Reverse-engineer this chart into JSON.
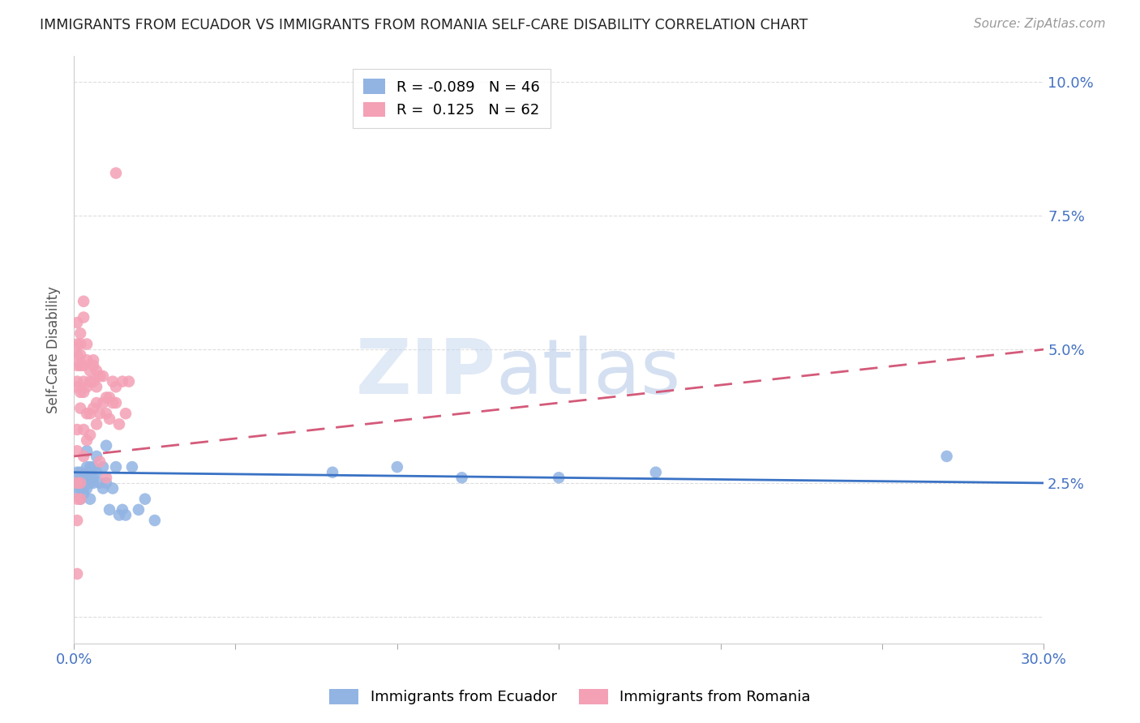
{
  "title": "IMMIGRANTS FROM ECUADOR VS IMMIGRANTS FROM ROMANIA SELF-CARE DISABILITY CORRELATION CHART",
  "source": "Source: ZipAtlas.com",
  "ylabel_label": "Self-Care Disability",
  "xlim": [
    0.0,
    0.3
  ],
  "ylim": [
    -0.005,
    0.105
  ],
  "yticks": [
    0.0,
    0.025,
    0.05,
    0.075,
    0.1
  ],
  "ytick_labels": [
    "",
    "2.5%",
    "5.0%",
    "7.5%",
    "10.0%"
  ],
  "xticks": [
    0.0,
    0.05,
    0.1,
    0.15,
    0.2,
    0.25,
    0.3
  ],
  "xtick_labels": [
    "0.0%",
    "",
    "",
    "",
    "",
    "",
    "30.0%"
  ],
  "ecuador_R": -0.089,
  "ecuador_N": 46,
  "romania_R": 0.125,
  "romania_N": 62,
  "ecuador_color": "#92b4e3",
  "romania_color": "#f4a0b5",
  "trendline_ecuador_color": "#3a72c4",
  "trendline_romania_color": "#d45a7a",
  "ecuador_x": [
    0.001,
    0.001,
    0.001,
    0.002,
    0.002,
    0.002,
    0.002,
    0.002,
    0.003,
    0.003,
    0.003,
    0.003,
    0.004,
    0.004,
    0.004,
    0.004,
    0.005,
    0.005,
    0.005,
    0.005,
    0.006,
    0.006,
    0.006,
    0.007,
    0.007,
    0.008,
    0.009,
    0.009,
    0.01,
    0.01,
    0.011,
    0.012,
    0.013,
    0.014,
    0.015,
    0.016,
    0.018,
    0.02,
    0.022,
    0.025,
    0.08,
    0.1,
    0.12,
    0.15,
    0.18,
    0.27
  ],
  "ecuador_y": [
    0.027,
    0.025,
    0.023,
    0.027,
    0.026,
    0.025,
    0.024,
    0.022,
    0.026,
    0.025,
    0.024,
    0.023,
    0.031,
    0.028,
    0.026,
    0.024,
    0.028,
    0.027,
    0.025,
    0.022,
    0.028,
    0.026,
    0.025,
    0.03,
    0.027,
    0.025,
    0.028,
    0.024,
    0.032,
    0.025,
    0.02,
    0.024,
    0.028,
    0.019,
    0.02,
    0.019,
    0.028,
    0.02,
    0.022,
    0.018,
    0.027,
    0.028,
    0.026,
    0.026,
    0.027,
    0.03
  ],
  "romania_x": [
    0.001,
    0.001,
    0.001,
    0.001,
    0.001,
    0.001,
    0.001,
    0.001,
    0.001,
    0.001,
    0.001,
    0.001,
    0.002,
    0.002,
    0.002,
    0.002,
    0.002,
    0.002,
    0.002,
    0.002,
    0.003,
    0.003,
    0.003,
    0.003,
    0.003,
    0.003,
    0.003,
    0.004,
    0.004,
    0.004,
    0.004,
    0.004,
    0.005,
    0.005,
    0.005,
    0.005,
    0.006,
    0.006,
    0.006,
    0.006,
    0.007,
    0.007,
    0.007,
    0.007,
    0.008,
    0.008,
    0.008,
    0.009,
    0.009,
    0.01,
    0.01,
    0.01,
    0.011,
    0.011,
    0.012,
    0.012,
    0.013,
    0.013,
    0.014,
    0.015,
    0.016,
    0.017
  ],
  "romania_y": [
    0.055,
    0.051,
    0.049,
    0.047,
    0.044,
    0.043,
    0.035,
    0.031,
    0.025,
    0.022,
    0.018,
    0.008,
    0.053,
    0.051,
    0.049,
    0.047,
    0.042,
    0.039,
    0.025,
    0.022,
    0.059,
    0.056,
    0.047,
    0.044,
    0.042,
    0.035,
    0.03,
    0.051,
    0.048,
    0.043,
    0.038,
    0.033,
    0.046,
    0.044,
    0.038,
    0.034,
    0.048,
    0.047,
    0.044,
    0.039,
    0.046,
    0.043,
    0.04,
    0.036,
    0.045,
    0.038,
    0.029,
    0.045,
    0.04,
    0.041,
    0.038,
    0.026,
    0.041,
    0.037,
    0.044,
    0.04,
    0.043,
    0.04,
    0.036,
    0.044,
    0.038,
    0.044
  ],
  "romania_outlier_x": [
    0.013
  ],
  "romania_outlier_y": [
    0.083
  ],
  "trendline_ecuador_x0": 0.0,
  "trendline_ecuador_x1": 0.3,
  "trendline_ecuador_y0": 0.027,
  "trendline_ecuador_y1": 0.025,
  "trendline_romania_x0": 0.0,
  "trendline_romania_x1": 0.3,
  "trendline_romania_y0": 0.03,
  "trendline_romania_y1": 0.05,
  "watermark_zip": "ZIP",
  "watermark_atlas": "atlas",
  "legend_ecuador_label": "Immigrants from Ecuador",
  "legend_romania_label": "Immigrants from Romania",
  "background_color": "#ffffff",
  "grid_color": "#dddddd",
  "tick_label_color": "#4472c4"
}
